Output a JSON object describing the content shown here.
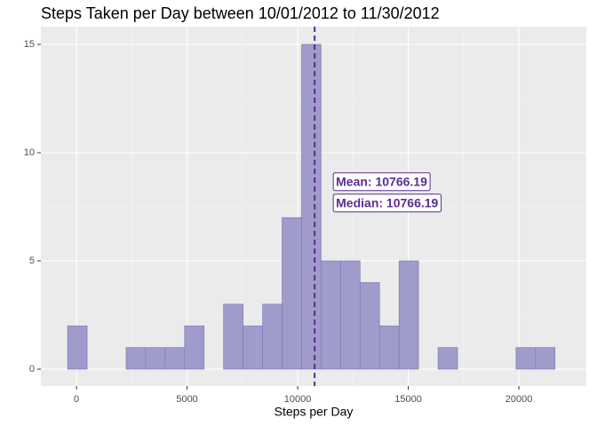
{
  "chart_data": {
    "type": "histogram",
    "title": "Steps Taken per Day between 10/01/2012 to 11/30/2012",
    "x_label": "Steps per Day",
    "bins": [
      -400,
      482,
      1363,
      2244,
      3126,
      4007,
      4889,
      5770,
      6651,
      7533,
      8414,
      9295,
      10177,
      11058,
      11940,
      12821,
      13702,
      14584,
      15465,
      16346,
      17228,
      18109,
      18991,
      19872,
      20753,
      21635
    ],
    "counts": [
      2,
      0,
      0,
      1,
      1,
      1,
      2,
      0,
      3,
      2,
      3,
      7,
      15,
      5,
      5,
      4,
      2,
      5,
      0,
      1,
      0,
      0,
      0,
      1,
      1
    ],
    "color": "#9f9bca",
    "edge_color": "#7b74b6",
    "xlim": [
      -1610,
      23050
    ],
    "ylim": [
      -0.78,
      15.82
    ],
    "xticks": [
      0,
      5000,
      10000,
      15000,
      20000
    ],
    "yticks": [
      0,
      5,
      10,
      15
    ],
    "grid": true,
    "annotations": [
      {
        "label": "Mean: 10766.19",
        "value": 10766.19
      },
      {
        "label": "Median: 10766.19",
        "value": 10766.19
      }
    ],
    "line_color": "#5a2d91"
  }
}
